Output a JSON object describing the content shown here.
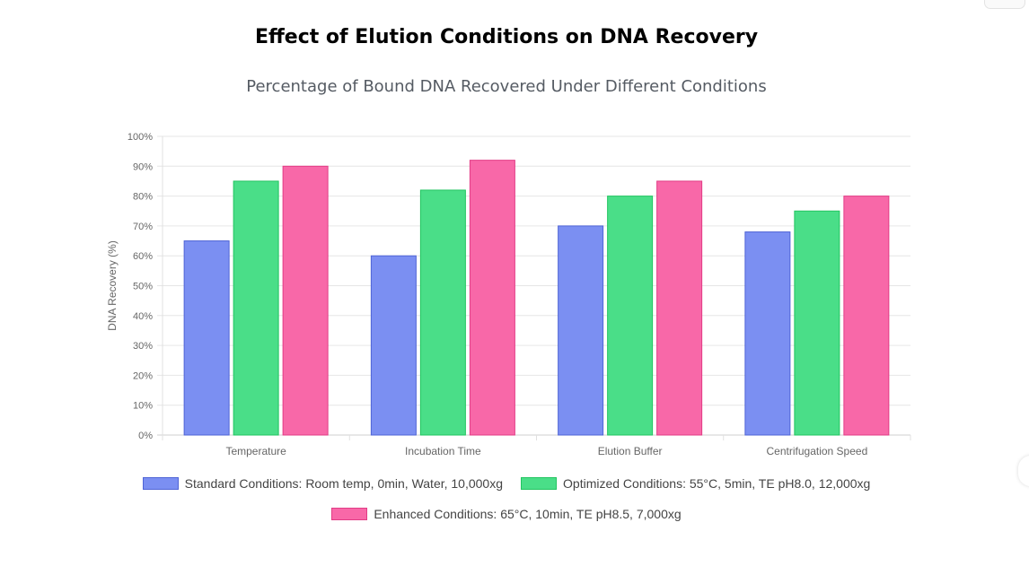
{
  "chart_data": {
    "type": "bar",
    "title": "Effect of Elution Conditions on DNA Recovery",
    "subtitle": "Percentage of Bound DNA Recovered Under Different Conditions",
    "ylabel": "DNA Recovery (%)",
    "xlabel": "",
    "ylim": [
      0,
      100
    ],
    "yticks": [
      "0%",
      "10%",
      "20%",
      "30%",
      "40%",
      "50%",
      "60%",
      "70%",
      "80%",
      "90%",
      "100%"
    ],
    "grid": true,
    "legend_position": "bottom",
    "categories": [
      "Temperature",
      "Incubation Time",
      "Elution Buffer",
      "Centrifugation Speed"
    ],
    "series": [
      {
        "name": "Standard Conditions: Room temp, 0min, Water, 10,000xg",
        "values": [
          65,
          60,
          70,
          68
        ],
        "fill": "#7b8ff2",
        "stroke": "#4f64d6"
      },
      {
        "name": "Optimized Conditions: 55°C, 5min, TE pH8.0, 12,000xg",
        "values": [
          85,
          82,
          80,
          75
        ],
        "fill": "#4ade88",
        "stroke": "#22c560"
      },
      {
        "name": "Enhanced Conditions: 65°C, 10min, TE pH8.5, 7,000xg",
        "values": [
          90,
          92,
          85,
          80
        ],
        "fill": "#f868a8",
        "stroke": "#e23c86"
      }
    ]
  }
}
